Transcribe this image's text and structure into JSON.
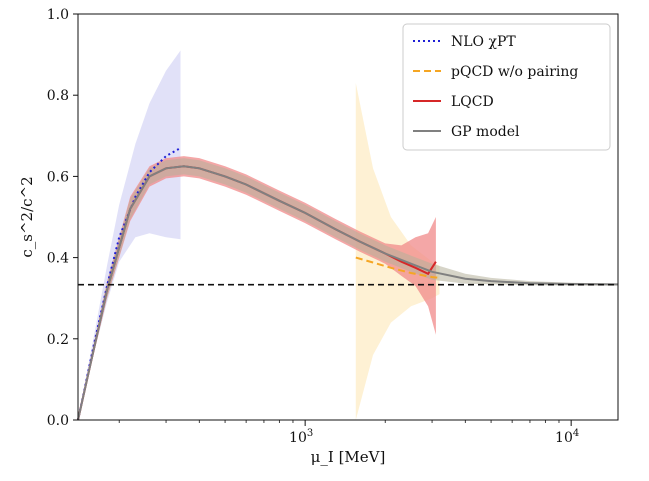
{
  "chart_data": {
    "type": "line",
    "title": "",
    "xlabel": "μ_I [MeV]",
    "ylabel": "c_s^2/c^2",
    "xscale": "log",
    "xlim": [
      140,
      15000
    ],
    "ylim": [
      0.0,
      1.0
    ],
    "grid": false,
    "legend_position": "top-right",
    "x_ticks": [
      {
        "value": 1000,
        "label": "10",
        "exp": "3"
      },
      {
        "value": 10000,
        "label": "10",
        "exp": "4"
      }
    ],
    "y_ticks": [
      {
        "value": 0.0,
        "label": "0.0"
      },
      {
        "value": 0.2,
        "label": "0.2"
      },
      {
        "value": 0.4,
        "label": "0.4"
      },
      {
        "value": 0.6,
        "label": "0.6"
      },
      {
        "value": 0.8,
        "label": "0.8"
      },
      {
        "value": 1.0,
        "label": "1.0"
      }
    ],
    "reference_line": {
      "y": 0.3333,
      "style": "dashed",
      "color": "#111111"
    },
    "series": [
      {
        "name": "NLO χPT",
        "style": "dotted",
        "color": "#1f1fd6",
        "band_color": "#c9c9f2",
        "x": [
          140,
          160,
          180,
          200,
          230,
          260,
          300,
          340
        ],
        "y": [
          0.0,
          0.18,
          0.33,
          0.45,
          0.55,
          0.61,
          0.65,
          0.67
        ],
        "band_upper": [
          0.0,
          0.2,
          0.38,
          0.53,
          0.68,
          0.78,
          0.86,
          0.91
        ],
        "band_lower": [
          0.0,
          0.16,
          0.29,
          0.39,
          0.45,
          0.46,
          0.45,
          0.445
        ]
      },
      {
        "name": "pQCD w/o pairing",
        "style": "dashed",
        "color": "#f5a623",
        "band_color": "#fde8b8",
        "x": [
          1550,
          1800,
          2100,
          2500,
          3000,
          3200
        ],
        "y": [
          0.4,
          0.388,
          0.375,
          0.362,
          0.352,
          0.35
        ],
        "band_upper": [
          0.83,
          0.62,
          0.5,
          0.43,
          0.39,
          0.38
        ],
        "band_lower": [
          0.0,
          0.16,
          0.24,
          0.28,
          0.3,
          0.31
        ]
      },
      {
        "name": "LQCD",
        "style": "solid",
        "color": "#d62728",
        "band_color": "#f08a8a",
        "x": [
          140,
          180,
          220,
          260,
          300,
          350,
          400,
          500,
          600,
          800,
          1000,
          1300,
          1600,
          2000,
          2300,
          2600,
          2900,
          3100
        ],
        "y": [
          0.0,
          0.32,
          0.52,
          0.6,
          0.62,
          0.625,
          0.62,
          0.6,
          0.58,
          0.54,
          0.51,
          0.47,
          0.44,
          0.41,
          0.39,
          0.375,
          0.36,
          0.39
        ],
        "band_upper": [
          0.0,
          0.34,
          0.55,
          0.625,
          0.645,
          0.65,
          0.645,
          0.625,
          0.605,
          0.565,
          0.535,
          0.495,
          0.465,
          0.435,
          0.43,
          0.45,
          0.46,
          0.5
        ],
        "band_lower": [
          0.0,
          0.3,
          0.49,
          0.575,
          0.595,
          0.6,
          0.595,
          0.575,
          0.555,
          0.515,
          0.485,
          0.445,
          0.415,
          0.385,
          0.355,
          0.33,
          0.28,
          0.21
        ]
      },
      {
        "name": "GP model",
        "style": "solid",
        "color": "#808080",
        "band_color": "#b5b09a",
        "x": [
          140,
          180,
          220,
          260,
          300,
          350,
          400,
          500,
          600,
          800,
          1000,
          1300,
          1600,
          2000,
          2500,
          3000,
          4000,
          5000,
          7000,
          10000,
          15000
        ],
        "y": [
          0.0,
          0.32,
          0.52,
          0.6,
          0.62,
          0.625,
          0.62,
          0.6,
          0.58,
          0.54,
          0.51,
          0.47,
          0.44,
          0.41,
          0.385,
          0.365,
          0.348,
          0.342,
          0.337,
          0.335,
          0.334
        ],
        "band_upper": [
          0.0,
          0.34,
          0.545,
          0.62,
          0.64,
          0.645,
          0.64,
          0.62,
          0.6,
          0.56,
          0.53,
          0.49,
          0.46,
          0.43,
          0.405,
          0.385,
          0.36,
          0.35,
          0.342,
          0.338,
          0.336
        ],
        "band_lower": [
          0.0,
          0.3,
          0.495,
          0.58,
          0.6,
          0.605,
          0.6,
          0.58,
          0.56,
          0.52,
          0.49,
          0.45,
          0.42,
          0.39,
          0.365,
          0.345,
          0.336,
          0.334,
          0.332,
          0.331,
          0.331
        ]
      }
    ]
  }
}
